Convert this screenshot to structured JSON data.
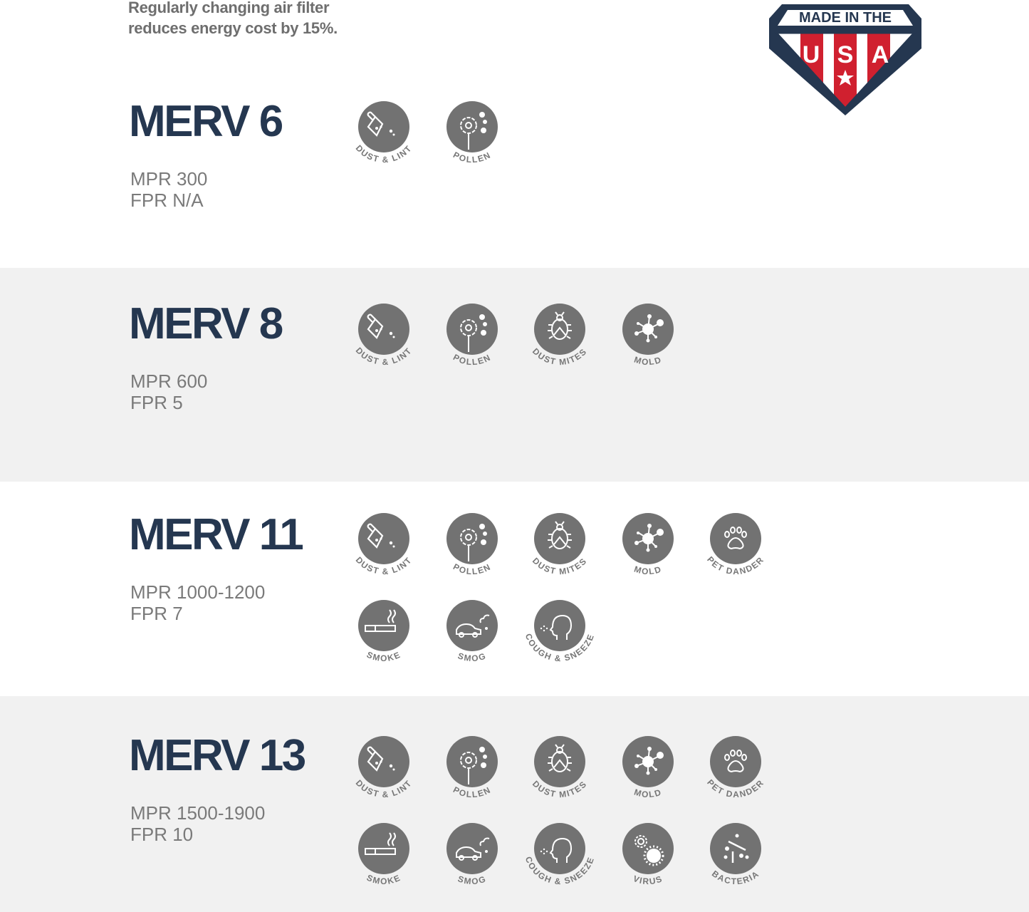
{
  "intro": {
    "line1": "Regularly changing air filter",
    "line2": "reduces energy cost by 15%."
  },
  "badge": {
    "top_text": "MADE IN THE",
    "letters": [
      "U",
      "S",
      "A"
    ],
    "colors": {
      "navy": "#253750",
      "red": "#d0202f",
      "white": "#ffffff"
    }
  },
  "colors": {
    "title": "#253750",
    "specs": "#7a7a7a",
    "icon_circle": "#727272",
    "icon_label": "#777777",
    "section_grey": "#f1f1f1"
  },
  "icon_labels": {
    "dust-lint": "DUST & LINT",
    "pollen": "POLLEN",
    "dust-mites": "DUST  MITES",
    "mold": "MOLD",
    "pet-dander": "PET  DANDER",
    "smoke": "SMOKE",
    "smog": "SMOG",
    "cough-sneeze": "COUGH & SNEEZE",
    "virus": "VIRUS",
    "bacteria": "BACTERIA"
  },
  "sections": [
    {
      "title": "MERV 6",
      "mpr": "MPR 300",
      "fpr": "FPR N/A",
      "icons": [
        [
          "dust-lint",
          "pollen"
        ]
      ]
    },
    {
      "title": "MERV 8",
      "mpr": "MPR 600",
      "fpr": "FPR 5",
      "icons": [
        [
          "dust-lint",
          "pollen",
          "dust-mites",
          "mold"
        ]
      ]
    },
    {
      "title": "MERV 11",
      "mpr": "MPR 1000-1200",
      "fpr": "FPR 7",
      "icons": [
        [
          "dust-lint",
          "pollen",
          "dust-mites",
          "mold",
          "pet-dander"
        ],
        [
          "smoke",
          "smog",
          "cough-sneeze"
        ]
      ]
    },
    {
      "title": "MERV 13",
      "mpr": "MPR 1500-1900",
      "fpr": "FPR 10",
      "icons": [
        [
          "dust-lint",
          "pollen",
          "dust-mites",
          "mold",
          "pet-dander"
        ],
        [
          "smoke",
          "smog",
          "cough-sneeze",
          "virus",
          "bacteria"
        ]
      ]
    }
  ]
}
